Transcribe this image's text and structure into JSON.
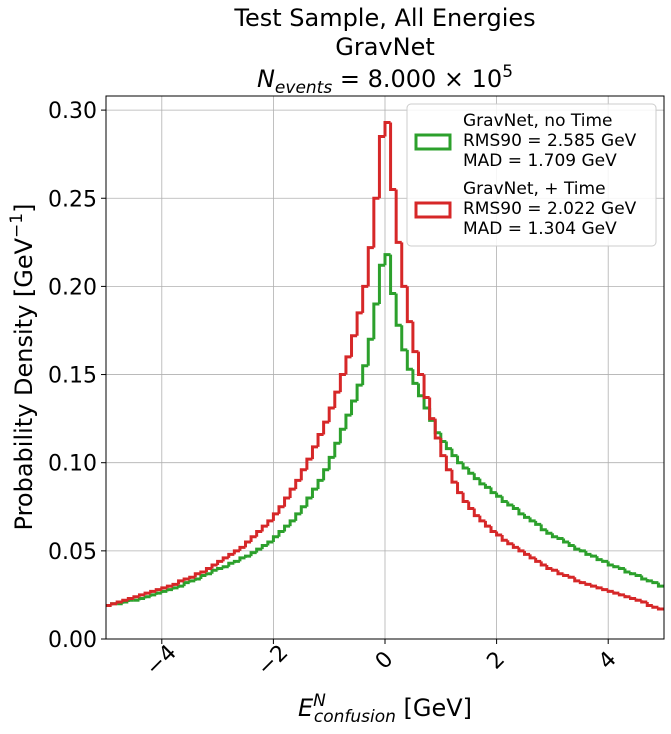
{
  "chart_data": {
    "type": "step_histogram",
    "title": [
      "Test Sample, All Energies",
      "GravNet"
    ],
    "title_formula": {
      "symbol": "N",
      "sub": "events",
      "text": " = 8.000 × 10",
      "sup": "5"
    },
    "xlabel": {
      "symbol": "E",
      "sup": "N",
      "sub": "confusion",
      "text": " [GeV]"
    },
    "ylabel": {
      "text": "Probability Density [GeV",
      "sup": "−1",
      "end": "]"
    },
    "xlim": [
      -5,
      5
    ],
    "ylim": [
      0,
      0.308
    ],
    "xticks": [
      {
        "value": -4,
        "label": "−4"
      },
      {
        "value": -2,
        "label": "−2"
      },
      0,
      2,
      4
    ],
    "yticks": [
      {
        "value": 0,
        "label": "0.00"
      },
      {
        "value": 0.05,
        "label": "0.05"
      },
      {
        "value": 0.1,
        "label": "0.10"
      },
      {
        "value": 0.15,
        "label": "0.15"
      },
      {
        "value": 0.2,
        "label": "0.20"
      },
      {
        "value": 0.25,
        "label": "0.25"
      },
      {
        "value": 0.3,
        "label": "0.30"
      }
    ],
    "grid": true,
    "legend": "upper right",
    "bins": [
      -5.0,
      -4.9,
      -4.8,
      -4.7,
      -4.6,
      -4.5,
      -4.4,
      -4.3,
      -4.2,
      -4.1,
      -4.0,
      -3.9,
      -3.8,
      -3.7,
      -3.6,
      -3.5,
      -3.4,
      -3.3,
      -3.2,
      -3.1,
      -3.0,
      -2.9,
      -2.8,
      -2.7,
      -2.6,
      -2.5,
      -2.4,
      -2.3,
      -2.2,
      -2.1,
      -2.0,
      -1.9,
      -1.8,
      -1.7,
      -1.6,
      -1.5,
      -1.4,
      -1.3,
      -1.2,
      -1.1,
      -1.0,
      -0.9,
      -0.8,
      -0.7,
      -0.6,
      -0.5,
      -0.4,
      -0.3,
      -0.2,
      -0.1,
      0.0,
      0.1,
      0.2,
      0.3,
      0.4,
      0.5,
      0.6,
      0.7,
      0.8,
      0.9,
      1.0,
      1.1,
      1.2,
      1.3,
      1.4,
      1.5,
      1.6,
      1.7,
      1.8,
      1.9,
      2.0,
      2.1,
      2.2,
      2.3,
      2.4,
      2.5,
      2.6,
      2.7,
      2.8,
      2.9,
      3.0,
      3.1,
      3.2,
      3.3,
      3.4,
      3.5,
      3.6,
      3.7,
      3.8,
      3.9,
      4.0,
      4.1,
      4.2,
      4.3,
      4.4,
      4.5,
      4.6,
      4.7,
      4.8,
      4.9,
      5.0
    ],
    "series": [
      {
        "name": "GravNet, no Time",
        "stats": [
          "RMS90 = 2.585 GeV",
          "MAD = 1.709 GeV"
        ],
        "color": "#2ca02c",
        "values": [
          0.019,
          0.02,
          0.02,
          0.021,
          0.022,
          0.022,
          0.023,
          0.024,
          0.025,
          0.026,
          0.027,
          0.028,
          0.029,
          0.03,
          0.032,
          0.033,
          0.034,
          0.036,
          0.037,
          0.039,
          0.04,
          0.041,
          0.043,
          0.044,
          0.046,
          0.047,
          0.049,
          0.051,
          0.053,
          0.055,
          0.058,
          0.061,
          0.064,
          0.067,
          0.071,
          0.075,
          0.08,
          0.085,
          0.09,
          0.096,
          0.103,
          0.111,
          0.119,
          0.127,
          0.135,
          0.144,
          0.155,
          0.17,
          0.19,
          0.212,
          0.218,
          0.196,
          0.178,
          0.164,
          0.153,
          0.145,
          0.138,
          0.131,
          0.124,
          0.117,
          0.112,
          0.108,
          0.104,
          0.1,
          0.097,
          0.094,
          0.091,
          0.088,
          0.086,
          0.083,
          0.081,
          0.078,
          0.076,
          0.074,
          0.071,
          0.069,
          0.067,
          0.065,
          0.062,
          0.06,
          0.058,
          0.057,
          0.055,
          0.053,
          0.051,
          0.05,
          0.048,
          0.047,
          0.045,
          0.044,
          0.042,
          0.041,
          0.04,
          0.038,
          0.037,
          0.036,
          0.034,
          0.033,
          0.032,
          0.03
        ]
      },
      {
        "name": "GravNet, + Time",
        "stats": [
          "RMS90 = 2.022 GeV",
          "MAD = 1.304 GeV"
        ],
        "color": "#d62728",
        "values": [
          0.019,
          0.02,
          0.021,
          0.022,
          0.023,
          0.024,
          0.025,
          0.026,
          0.027,
          0.028,
          0.029,
          0.03,
          0.031,
          0.033,
          0.034,
          0.035,
          0.037,
          0.038,
          0.04,
          0.042,
          0.044,
          0.046,
          0.048,
          0.05,
          0.052,
          0.055,
          0.058,
          0.061,
          0.064,
          0.067,
          0.071,
          0.075,
          0.08,
          0.085,
          0.09,
          0.096,
          0.102,
          0.109,
          0.116,
          0.123,
          0.131,
          0.14,
          0.15,
          0.16,
          0.172,
          0.185,
          0.2,
          0.222,
          0.25,
          0.285,
          0.293,
          0.255,
          0.225,
          0.2,
          0.18,
          0.163,
          0.15,
          0.137,
          0.125,
          0.114,
          0.104,
          0.096,
          0.089,
          0.083,
          0.078,
          0.074,
          0.07,
          0.067,
          0.064,
          0.061,
          0.059,
          0.056,
          0.054,
          0.052,
          0.05,
          0.048,
          0.046,
          0.044,
          0.042,
          0.04,
          0.039,
          0.037,
          0.036,
          0.035,
          0.033,
          0.032,
          0.031,
          0.03,
          0.029,
          0.028,
          0.027,
          0.026,
          0.025,
          0.024,
          0.023,
          0.022,
          0.021,
          0.019,
          0.018,
          0.017
        ]
      }
    ]
  }
}
